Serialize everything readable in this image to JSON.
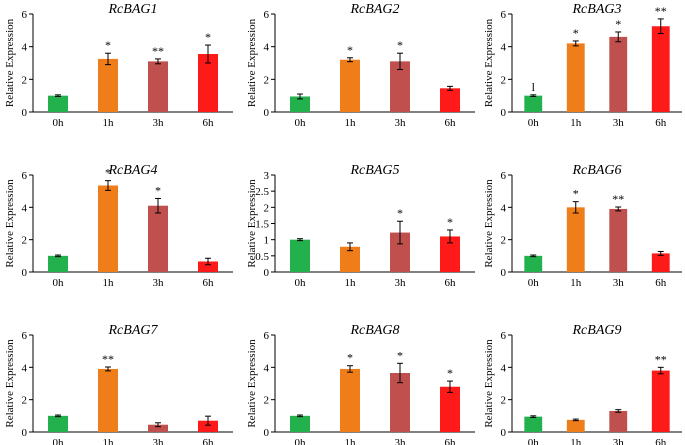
{
  "colors": [
    "#22b14c",
    "#ef7d1a",
    "#c0504d",
    "#ff1a1a"
  ],
  "chart_data": [
    {
      "type": "bar",
      "title": "RcBAG1",
      "categories": [
        "0h",
        "1h",
        "3h",
        "6h"
      ],
      "values": [
        1.0,
        3.25,
        3.1,
        3.55
      ],
      "errors": [
        0.05,
        0.35,
        0.15,
        0.55
      ],
      "significance": [
        "",
        "*",
        "**",
        "*"
      ],
      "ylabel": "Relative Expression",
      "ylim": [
        0,
        6
      ],
      "yticks": [
        "0",
        "2",
        "4",
        "6"
      ]
    },
    {
      "type": "bar",
      "title": "RcBAG2",
      "categories": [
        "0h",
        "1h",
        "3h",
        "6h"
      ],
      "values": [
        0.95,
        3.2,
        3.1,
        1.45
      ],
      "errors": [
        0.15,
        0.12,
        0.5,
        0.12
      ],
      "significance": [
        "",
        "*",
        "*",
        ""
      ],
      "ylabel": "Relative Expression",
      "ylim": [
        0,
        6
      ],
      "yticks": [
        "0",
        "2",
        "4",
        "6"
      ]
    },
    {
      "type": "bar",
      "title": "RcBAG3",
      "categories": [
        "0h",
        "1h",
        "3h",
        "6h"
      ],
      "values": [
        1.0,
        4.2,
        4.6,
        5.25
      ],
      "errors": [
        0.05,
        0.15,
        0.3,
        0.45
      ],
      "significance": [
        "l",
        "*",
        "*",
        "**"
      ],
      "ylabel": "Relative Expression",
      "ylim": [
        0,
        6
      ],
      "yticks": [
        "0",
        "2",
        "4",
        "6"
      ]
    },
    {
      "type": "bar",
      "title": "RcBAG4",
      "categories": [
        "0h",
        "1h",
        "3h",
        "6h"
      ],
      "values": [
        1.0,
        5.35,
        4.1,
        0.65
      ],
      "errors": [
        0.05,
        0.3,
        0.45,
        0.2
      ],
      "significance": [
        "",
        "*",
        "*",
        ""
      ],
      "ylabel": "Relative Expression",
      "ylim": [
        0,
        6
      ],
      "yticks": [
        "0",
        "2",
        "4",
        "6"
      ]
    },
    {
      "type": "bar",
      "title": "RcBAG5",
      "categories": [
        "0h",
        "1h",
        "3h",
        "6h"
      ],
      "values": [
        1.0,
        0.78,
        1.22,
        1.1
      ],
      "errors": [
        0.03,
        0.12,
        0.35,
        0.2
      ],
      "significance": [
        "",
        "",
        "*",
        "*"
      ],
      "ylabel": "Relative Expression",
      "ylim": [
        0,
        3
      ],
      "yticks": [
        "0",
        "0.5",
        "1",
        "1.5",
        "2",
        "2.5",
        "3"
      ]
    },
    {
      "type": "bar",
      "title": "RcBAG6",
      "categories": [
        "0h",
        "1h",
        "3h",
        "6h"
      ],
      "values": [
        1.0,
        4.0,
        3.9,
        1.15
      ],
      "errors": [
        0.05,
        0.35,
        0.12,
        0.12
      ],
      "significance": [
        "",
        "*",
        "**",
        ""
      ],
      "ylabel": "Relative Expression",
      "ylim": [
        0,
        6
      ],
      "yticks": [
        "0",
        "2",
        "4",
        "6"
      ]
    },
    {
      "type": "bar",
      "title": "RcBAG7",
      "categories": [
        "0h",
        "1h",
        "3h",
        "6h"
      ],
      "values": [
        1.0,
        3.9,
        0.45,
        0.7
      ],
      "errors": [
        0.05,
        0.12,
        0.12,
        0.28
      ],
      "significance": [
        "",
        "**",
        "",
        ""
      ],
      "ylabel": "Relative Expression",
      "ylim": [
        0,
        6
      ],
      "yticks": [
        "0",
        "2",
        "4",
        "6"
      ]
    },
    {
      "type": "bar",
      "title": "RcBAG8",
      "categories": [
        "0h",
        "1h",
        "3h",
        "6h"
      ],
      "values": [
        1.0,
        3.9,
        3.65,
        2.8
      ],
      "errors": [
        0.05,
        0.2,
        0.6,
        0.35
      ],
      "significance": [
        "",
        "*",
        "*",
        "*"
      ],
      "ylabel": "Relative Expression",
      "ylim": [
        0,
        6
      ],
      "yticks": [
        "0",
        "2",
        "4",
        "6"
      ]
    },
    {
      "type": "bar",
      "title": "RcBAG9",
      "categories": [
        "0h",
        "1h",
        "3h",
        "6h"
      ],
      "values": [
        0.95,
        0.75,
        1.3,
        3.8
      ],
      "errors": [
        0.05,
        0.05,
        0.08,
        0.2
      ],
      "significance": [
        "",
        "",
        "",
        "**"
      ],
      "ylabel": "Relative Expression",
      "ylim": [
        0,
        6
      ],
      "yticks": [
        "0",
        "2",
        "4",
        "6"
      ]
    }
  ]
}
